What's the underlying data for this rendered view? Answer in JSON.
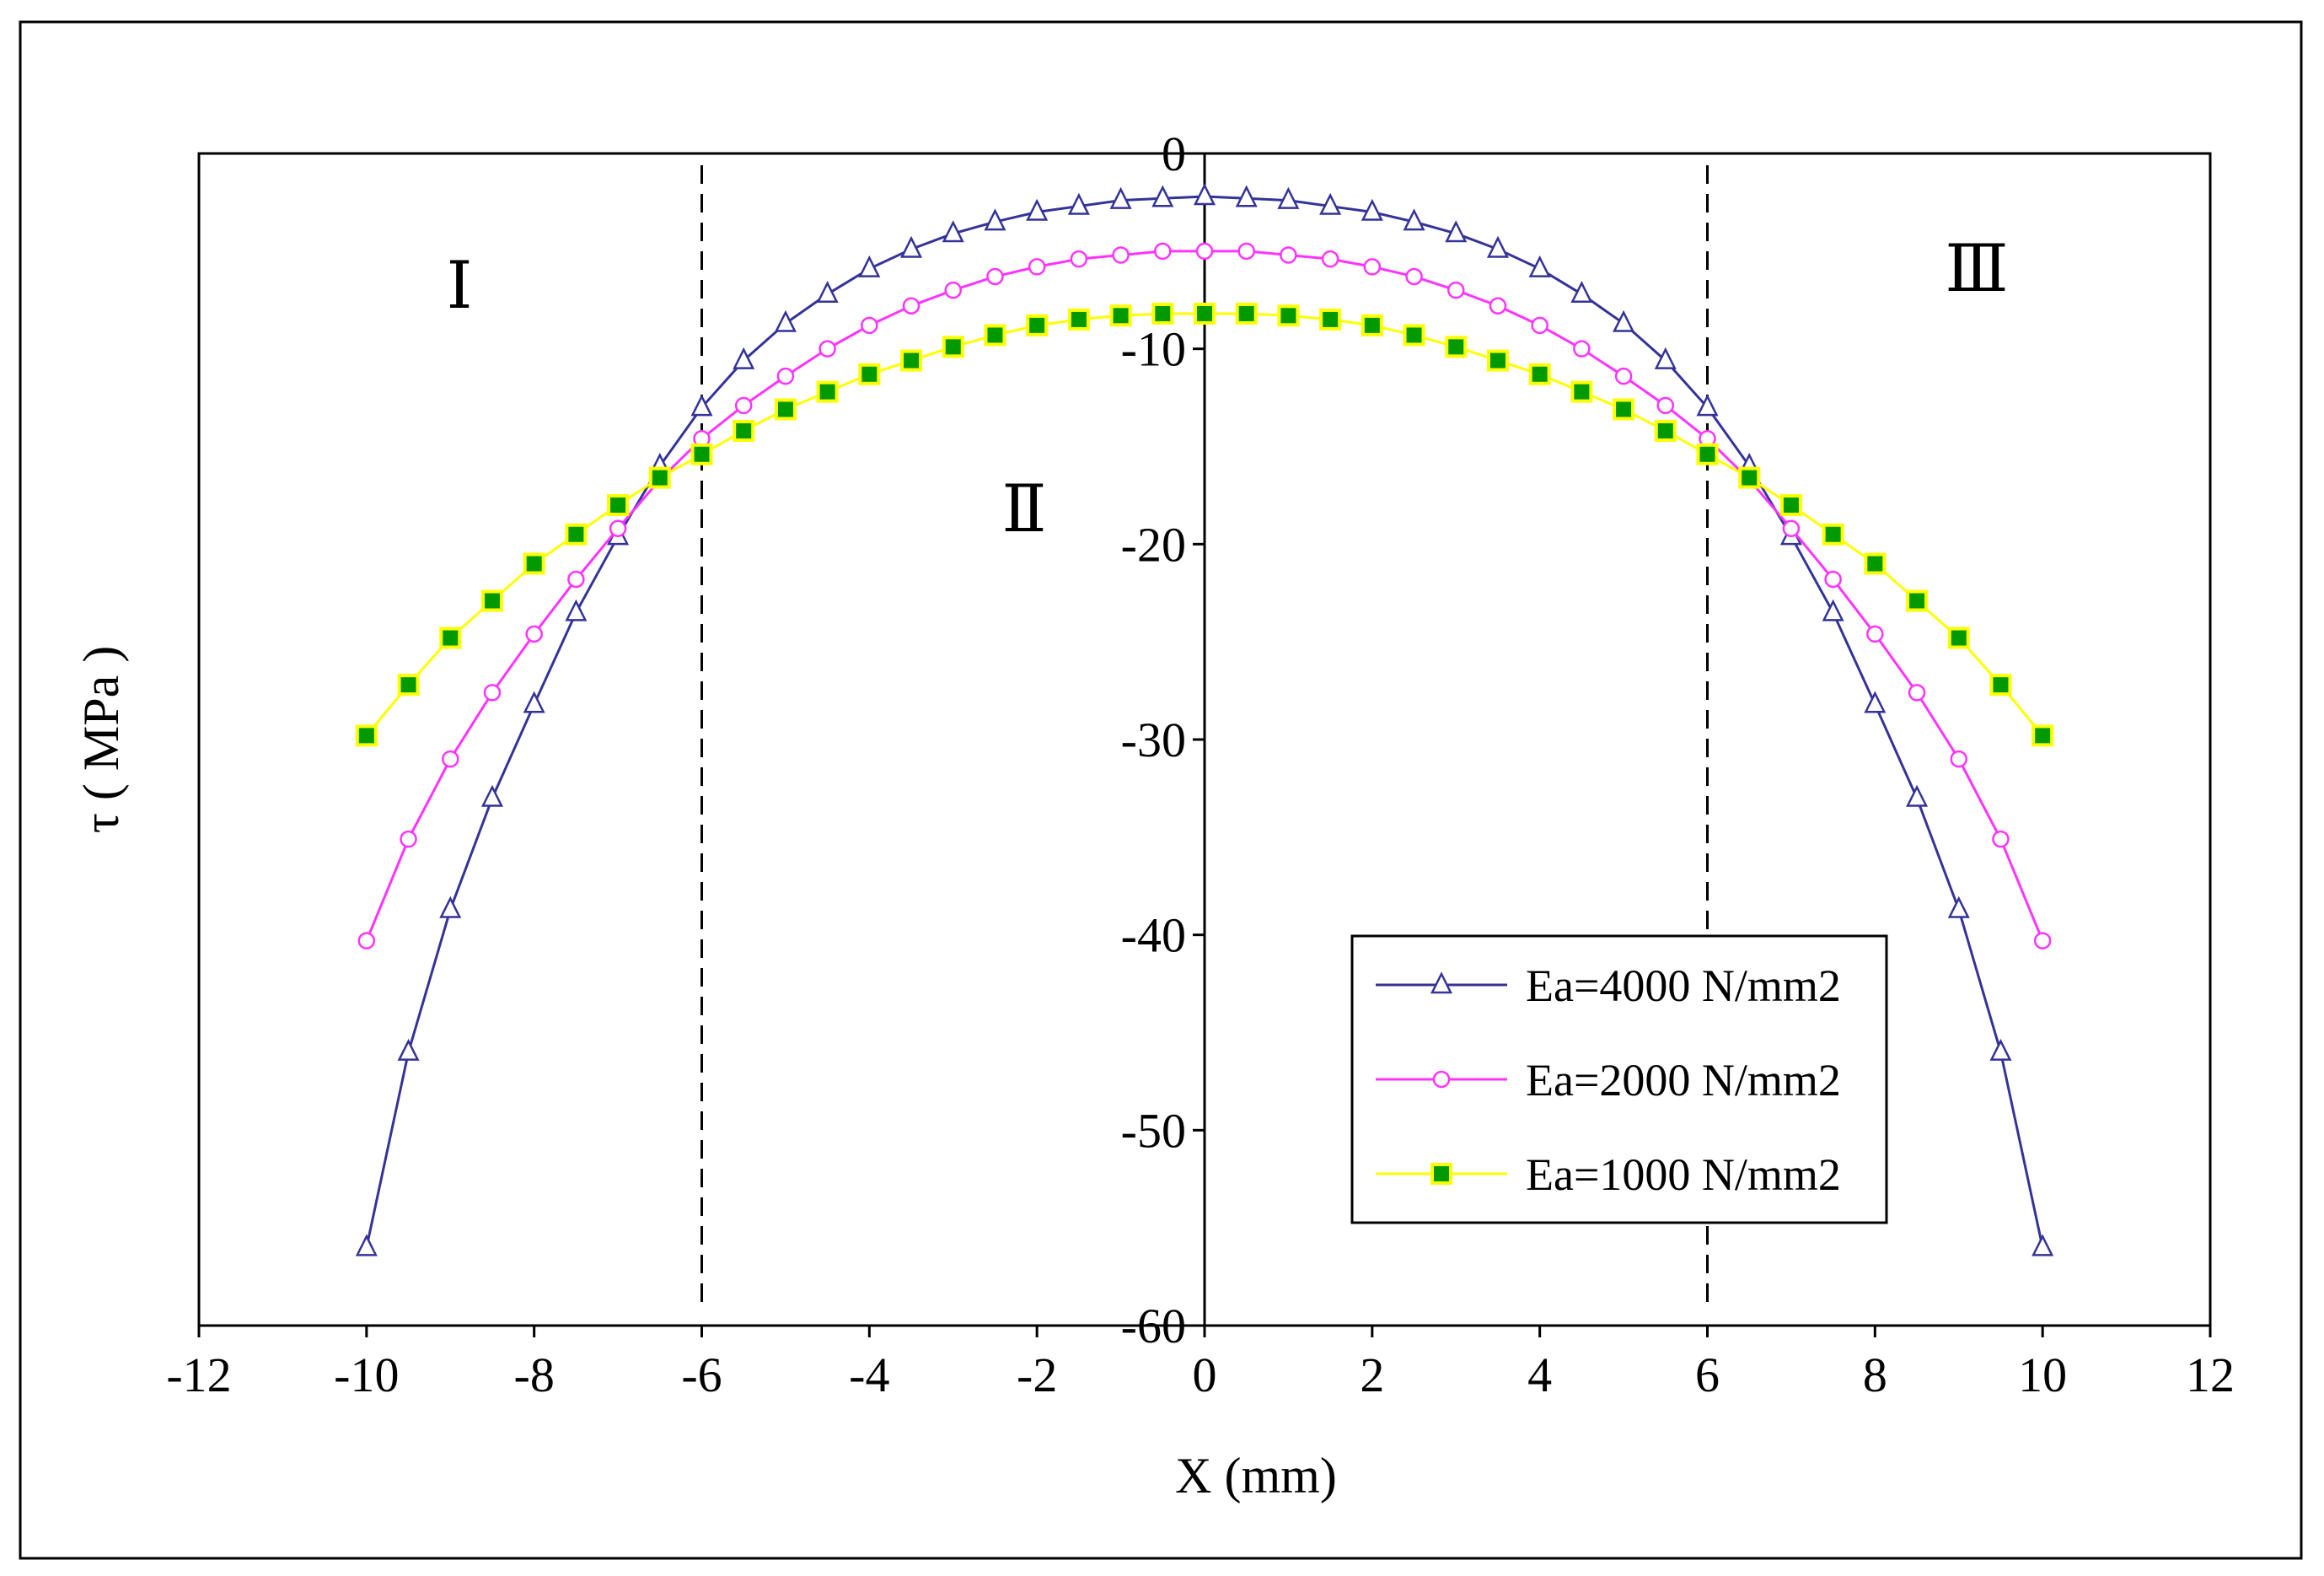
{
  "chart_data": {
    "type": "line",
    "title": "",
    "xlabel": "X (mm)",
    "ylabel": "τ ( MPa )",
    "xlim": [
      -12,
      12
    ],
    "ylim": [
      -60,
      0
    ],
    "xticks": [
      -12,
      -10,
      -8,
      -6,
      -4,
      -2,
      0,
      2,
      4,
      6,
      8,
      10,
      12
    ],
    "yticks": [
      0,
      -10,
      -20,
      -30,
      -40,
      -50,
      -60
    ],
    "x_tick_labels": [
      "-12",
      "-10",
      "-8",
      "-6",
      "-4",
      "-2",
      "0",
      "2",
      "4",
      "6",
      "8",
      "10",
      "12"
    ],
    "y_tick_labels": [
      "0",
      "-10",
      "-20",
      "-30",
      "-40",
      "-50",
      "-60"
    ],
    "x": [
      -10,
      -9.5,
      -9,
      -8.5,
      -8,
      -7.5,
      -7,
      -6.5,
      -6,
      -5.5,
      -5,
      -4.5,
      -4,
      -3.5,
      -3,
      -2.5,
      -2,
      -1.5,
      -1,
      -0.5,
      0,
      0.5,
      1,
      1.5,
      2,
      2.5,
      3,
      3.5,
      4,
      4.5,
      5,
      5.5,
      6,
      6.5,
      7,
      7.5,
      8,
      8.5,
      9,
      9.5,
      10
    ],
    "series": [
      {
        "name": "Ea=4000 N/mm2",
        "color": "#333399",
        "marker": "triangle",
        "values": [
          -56.0,
          -46.0,
          -38.7,
          -33.0,
          -28.2,
          -23.5,
          -19.6,
          -16.0,
          -13.0,
          -10.6,
          -8.7,
          -7.2,
          -5.9,
          -4.9,
          -4.1,
          -3.5,
          -3.0,
          -2.7,
          -2.4,
          -2.3,
          -2.2,
          -2.3,
          -2.4,
          -2.7,
          -3.0,
          -3.5,
          -4.1,
          -4.9,
          -5.9,
          -7.2,
          -8.7,
          -10.6,
          -13.0,
          -16.0,
          -19.6,
          -23.5,
          -28.2,
          -33.0,
          -38.7,
          -46.0,
          -56.0
        ]
      },
      {
        "name": "Ea=2000 N/mm2",
        "color": "#ff33ff",
        "marker": "circle",
        "values": [
          -40.3,
          -35.1,
          -31.0,
          -27.6,
          -24.6,
          -21.8,
          -19.2,
          -16.7,
          -14.6,
          -12.9,
          -11.4,
          -10.0,
          -8.8,
          -7.8,
          -7.0,
          -6.3,
          -5.8,
          -5.4,
          -5.2,
          -5.0,
          -5.0,
          -5.0,
          -5.2,
          -5.4,
          -5.8,
          -6.3,
          -7.0,
          -7.8,
          -8.8,
          -10.0,
          -11.4,
          -12.9,
          -14.6,
          -16.7,
          -19.2,
          -21.8,
          -24.6,
          -27.6,
          -31.0,
          -35.1,
          -40.3
        ]
      },
      {
        "name": "Ea=1000 N/mm2",
        "color": "#ffff00",
        "marker_fill": "#009900",
        "marker": "square",
        "values": [
          -29.8,
          -27.2,
          -24.8,
          -22.9,
          -21.0,
          -19.5,
          -18.0,
          -16.6,
          -15.4,
          -14.2,
          -13.1,
          -12.2,
          -11.3,
          -10.6,
          -9.9,
          -9.3,
          -8.8,
          -8.5,
          -8.3,
          -8.2,
          -8.2,
          -8.2,
          -8.3,
          -8.5,
          -8.8,
          -9.3,
          -9.9,
          -10.6,
          -11.3,
          -12.2,
          -13.1,
          -14.2,
          -15.4,
          -16.6,
          -18.0,
          -19.5,
          -21.0,
          -22.9,
          -24.8,
          -27.2,
          -29.8
        ]
      }
    ],
    "vertical_lines": [
      -6,
      6
    ],
    "region_labels": [
      "Ⅰ",
      "Ⅱ",
      "Ⅲ"
    ],
    "legend": {
      "position": "lower-right",
      "entries": [
        "Ea=4000 N/mm2",
        "Ea=2000 N/mm2",
        "Ea=1000 N/mm2"
      ]
    }
  }
}
